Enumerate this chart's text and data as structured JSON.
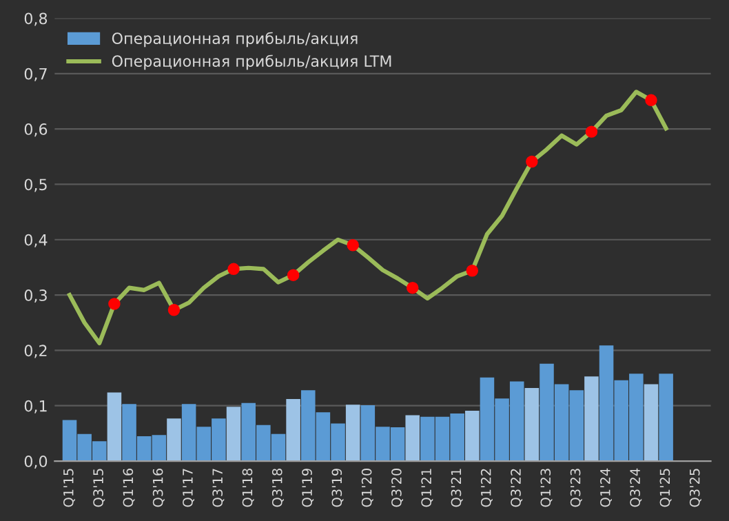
{
  "chart_data": {
    "type": "bar",
    "categories": [
      "Q1'15",
      null,
      "Q3'15",
      null,
      "Q1'16",
      null,
      "Q3'16",
      null,
      "Q1'17",
      null,
      "Q3'17",
      null,
      "Q1'18",
      null,
      "Q3'18",
      null,
      "Q1'19",
      null,
      "Q3'19",
      null,
      "Q1'20",
      null,
      "Q3'20",
      null,
      "Q1'21",
      null,
      "Q3'21",
      null,
      "Q1'22",
      null,
      "Q3'22",
      null,
      "Q1'23",
      null,
      "Q3'23",
      null,
      "Q1'24",
      null,
      "Q3'24",
      null,
      "Q1'25",
      null,
      "Q3'25"
    ],
    "series": [
      {
        "name": "Операционная прибыль/акция",
        "color": "#5b9bd5",
        "colors": [
          "#5b9bd5",
          "#5b9bd5",
          "#5b9bd5",
          "#9dc3e6",
          "#5b9bd5",
          "#5b9bd5",
          "#5b9bd5",
          "#9dc3e6",
          "#5b9bd5",
          "#5b9bd5",
          "#5b9bd5",
          "#9dc3e6",
          "#5b9bd5",
          "#5b9bd5",
          "#5b9bd5",
          "#9dc3e6",
          "#5b9bd5",
          "#5b9bd5",
          "#5b9bd5",
          "#9dc3e6",
          "#5b9bd5",
          "#5b9bd5",
          "#5b9bd5",
          "#9dc3e6",
          "#5b9bd5",
          "#5b9bd5",
          "#5b9bd5",
          "#9dc3e6",
          "#5b9bd5",
          "#5b9bd5",
          "#5b9bd5",
          "#9dc3e6",
          "#5b9bd5",
          "#5b9bd5",
          "#5b9bd5",
          "#9dc3e6",
          "#5b9bd5",
          "#5b9bd5",
          "#5b9bd5",
          "#9dc3e6",
          "#5b9bd5",
          "#5b9bd5",
          "#5b9bd5"
        ],
        "values": [
          0.074,
          0.049,
          0.036,
          0.124,
          0.103,
          0.045,
          0.047,
          0.077,
          0.103,
          0.062,
          0.077,
          0.098,
          0.105,
          0.065,
          0.049,
          0.112,
          0.128,
          0.088,
          0.068,
          0.102,
          0.101,
          0.062,
          0.061,
          0.083,
          0.08,
          0.08,
          0.086,
          0.091,
          0.151,
          0.113,
          0.144,
          0.132,
          0.176,
          0.139,
          0.128,
          0.153,
          0.209,
          0.146,
          0.158,
          0.139,
          0.158,
          null,
          null
        ]
      },
      {
        "name": "Операционная прибыль/акция LTM",
        "type": "line",
        "color": "#9bbb59",
        "line_style": "solid",
        "marker": "none",
        "values": [
          0.3,
          0.25,
          0.213,
          0.284,
          0.313,
          0.309,
          0.322,
          0.273,
          0.286,
          0.313,
          0.334,
          0.347,
          0.349,
          0.347,
          0.323,
          0.336,
          0.359,
          0.38,
          0.4,
          0.39,
          0.368,
          0.345,
          0.33,
          0.313,
          0.294,
          0.313,
          0.334,
          0.344,
          0.41,
          0.443,
          0.493,
          0.541,
          0.563,
          0.588,
          0.572,
          0.595,
          0.624,
          0.634,
          0.667,
          0.652,
          0.601,
          null,
          null
        ]
      },
      {
        "type": "scatter",
        "color": "#ff0000",
        "marker": "circle",
        "values": [
          null,
          null,
          null,
          0.284,
          null,
          null,
          null,
          0.273,
          null,
          null,
          null,
          0.347,
          null,
          null,
          null,
          0.336,
          null,
          null,
          null,
          0.39,
          null,
          null,
          null,
          0.313,
          null,
          null,
          null,
          0.344,
          null,
          null,
          null,
          0.541,
          null,
          null,
          null,
          0.595,
          null,
          null,
          null,
          0.652,
          null,
          null,
          null
        ]
      }
    ],
    "ylim": [
      0,
      0.8
    ],
    "yticks": [
      {
        "value": 0,
        "label": "0,0"
      },
      {
        "value": 0.1,
        "label": "0,1"
      },
      {
        "value": 0.2,
        "label": "0,2"
      },
      {
        "value": 0.3,
        "label": "0,3"
      },
      {
        "value": 0.4,
        "label": "0,4"
      },
      {
        "value": 0.5,
        "label": "0,5"
      },
      {
        "value": 0.6,
        "label": "0,6"
      },
      {
        "value": 0.7,
        "label": "0,7"
      },
      {
        "value": 0.8,
        "label": "0,8"
      }
    ],
    "grid": "y",
    "legend": "top left"
  }
}
